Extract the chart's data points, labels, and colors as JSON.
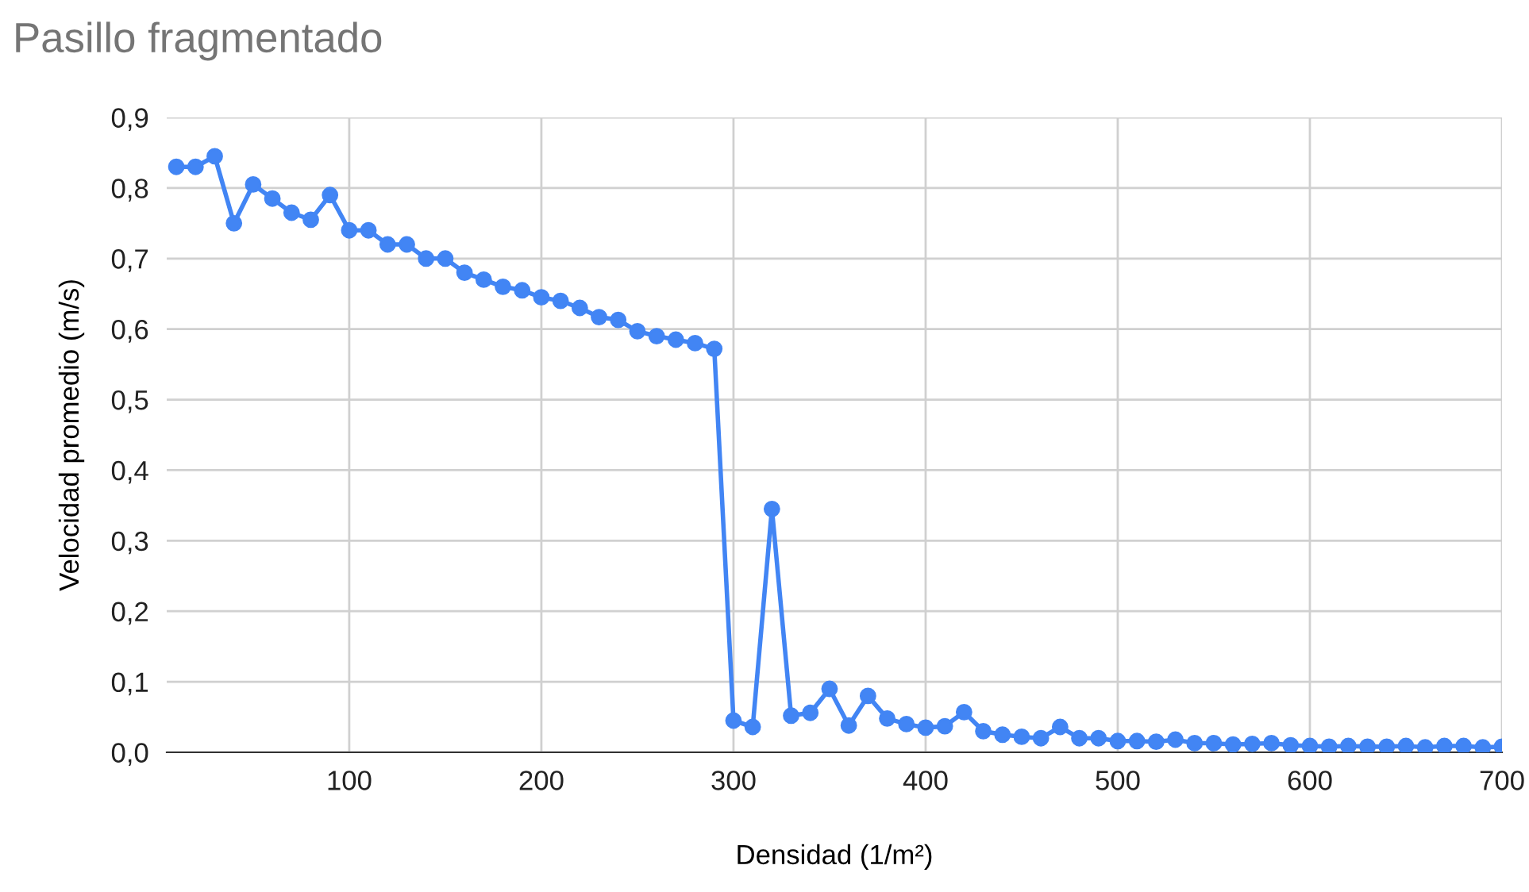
{
  "chart_data": {
    "type": "line",
    "title": "Pasillo fragmentado",
    "xlabel": "Densidad (1/m²)",
    "ylabel": "Velocidad promedio (m/s)",
    "x": [
      10,
      20,
      30,
      40,
      50,
      60,
      70,
      80,
      90,
      100,
      110,
      120,
      130,
      140,
      150,
      160,
      170,
      180,
      190,
      200,
      210,
      220,
      230,
      240,
      250,
      260,
      270,
      280,
      290,
      300,
      310,
      320,
      330,
      340,
      350,
      360,
      370,
      380,
      390,
      400,
      410,
      420,
      430,
      440,
      450,
      460,
      470,
      480,
      490,
      500,
      510,
      520,
      530,
      540,
      550,
      560,
      570,
      580,
      590,
      600,
      610,
      620,
      630,
      640,
      650,
      660,
      670,
      680,
      690,
      700
    ],
    "series": [
      {
        "color": "#4285f4",
        "values": [
          0.83,
          0.83,
          0.845,
          0.75,
          0.805,
          0.785,
          0.765,
          0.755,
          0.79,
          0.74,
          0.74,
          0.72,
          0.72,
          0.7,
          0.7,
          0.68,
          0.67,
          0.66,
          0.655,
          0.645,
          0.64,
          0.63,
          0.617,
          0.613,
          0.597,
          0.59,
          0.585,
          0.58,
          0.572,
          0.045,
          0.036,
          0.345,
          0.052,
          0.056,
          0.09,
          0.038,
          0.08,
          0.048,
          0.04,
          0.035,
          0.037,
          0.057,
          0.03,
          0.025,
          0.022,
          0.02,
          0.036,
          0.02,
          0.02,
          0.016,
          0.016,
          0.015,
          0.018,
          0.013,
          0.013,
          0.011,
          0.012,
          0.013,
          0.01,
          0.009,
          0.008,
          0.009,
          0.008,
          0.008,
          0.009,
          0.007,
          0.009,
          0.009,
          0.007,
          0.008
        ]
      }
    ],
    "xlim": [
      5,
      700
    ],
    "xticks": [
      100,
      200,
      300,
      400,
      500,
      600,
      700
    ],
    "ylim": [
      0,
      0.9
    ],
    "yticks": [
      {
        "value": 0,
        "label": "0,0"
      },
      {
        "value": 0.1,
        "label": "0,1"
      },
      {
        "value": 0.2,
        "label": "0,2"
      },
      {
        "value": 0.3,
        "label": "0,3"
      },
      {
        "value": 0.4,
        "label": "0,4"
      },
      {
        "value": 0.5,
        "label": "0,5"
      },
      {
        "value": 0.6,
        "label": "0,6"
      },
      {
        "value": 0.7,
        "label": "0,7"
      },
      {
        "value": 0.8,
        "label": "0,8"
      },
      {
        "value": 0.9,
        "label": "0,9"
      }
    ],
    "grid": true,
    "marker": "circle",
    "line_style": "solid"
  }
}
